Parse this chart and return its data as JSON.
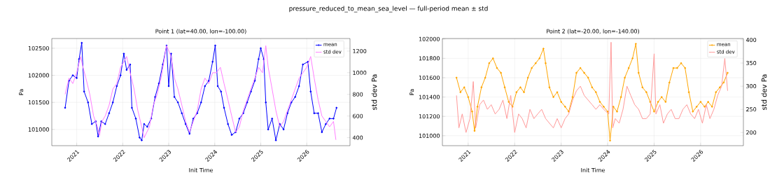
{
  "chart_data": [
    {
      "type": "other",
      "title": "pressure_reduced_to_mean_sea_level — full-period mean ± std"
    },
    {
      "type": "line",
      "title": "Point 1 (lat=40.00, lon=-100.00)",
      "xlabel": "Init Time",
      "ylabel": "Pa",
      "y2label": "std dev Pa",
      "xlim": [
        "2020-06-17",
        "2026-12-10"
      ],
      "xticks": [
        "2021",
        "2022",
        "2023",
        "2024",
        "2025",
        "2026"
      ],
      "ylim": [
        100700,
        102680
      ],
      "yticks": [
        101000,
        101500,
        102000,
        102500
      ],
      "y2lim": [
        326,
        1316
      ],
      "y2ticks": [
        400,
        600,
        800,
        1000,
        1200
      ],
      "grid": true,
      "legend": "top right",
      "series": [
        {
          "name": "mean",
          "color": "#0000ff",
          "marker": "circle",
          "axis": "y",
          "x": [
            "2020-10-01",
            "2020-11-01",
            "2020-12-01",
            "2021-01-01",
            "2021-01-20",
            "2021-02-10",
            "2021-03-01",
            "2021-04-01",
            "2021-05-01",
            "2021-06-01",
            "2021-06-20",
            "2021-07-15",
            "2021-08-15",
            "2021-09-15",
            "2021-10-15",
            "2021-11-15",
            "2021-12-15",
            "2022-01-10",
            "2022-02-01",
            "2022-03-01",
            "2022-03-15",
            "2022-04-15",
            "2022-05-15",
            "2022-06-01",
            "2022-06-20",
            "2022-07-15",
            "2022-08-15",
            "2022-09-15",
            "2022-10-15",
            "2022-11-15",
            "2022-12-15",
            "2023-01-01",
            "2023-01-20",
            "2023-02-15",
            "2023-03-15",
            "2023-04-15",
            "2023-05-15",
            "2023-06-15",
            "2023-07-15",
            "2023-08-15",
            "2023-09-15",
            "2023-10-15",
            "2023-11-15",
            "2023-12-15",
            "2024-01-05",
            "2024-01-25",
            "2024-02-20",
            "2024-03-15",
            "2024-04-15",
            "2024-05-15",
            "2024-06-15",
            "2024-07-15",
            "2024-08-15",
            "2024-09-15",
            "2024-10-15",
            "2024-11-15",
            "2024-12-15",
            "2025-01-01",
            "2025-01-25",
            "2025-02-10",
            "2025-03-01",
            "2025-04-01",
            "2025-05-01",
            "2025-06-01",
            "2025-07-01",
            "2025-08-01",
            "2025-09-01",
            "2025-10-01",
            "2025-11-01",
            "2025-12-01",
            "2026-01-10",
            "2026-02-01",
            "2026-03-01",
            "2026-04-01",
            "2026-05-01",
            "2026-06-01",
            "2026-07-01",
            "2026-08-01",
            "2026-08-25"
          ],
          "values": [
            101400,
            101900,
            102000,
            101950,
            102300,
            102600,
            101700,
            101500,
            101100,
            101150,
            100870,
            101150,
            101100,
            101300,
            101500,
            101800,
            102000,
            102400,
            102100,
            102200,
            101400,
            101200,
            100850,
            100800,
            101100,
            101050,
            101200,
            101600,
            101850,
            102200,
            102550,
            101800,
            102400,
            101600,
            101500,
            101300,
            101100,
            100920,
            101200,
            101300,
            101500,
            101800,
            101900,
            102250,
            102550,
            101800,
            101700,
            101400,
            101100,
            100900,
            100950,
            101200,
            101300,
            101500,
            101700,
            101900,
            102300,
            102500,
            102300,
            101500,
            101000,
            101200,
            100800,
            101100,
            101000,
            101300,
            101500,
            101600,
            101800,
            102200,
            102250,
            101700,
            101300,
            101300,
            100950,
            101100,
            101200,
            101200,
            101400
          ]
        },
        {
          "name": "std dev",
          "color": "#ff80ff",
          "marker": "none",
          "axis": "y2",
          "x": [
            "2020-10-01",
            "2020-11-01",
            "2020-12-01",
            "2021-01-01",
            "2021-02-01",
            "2021-02-20",
            "2021-03-15",
            "2021-04-15",
            "2021-05-15",
            "2021-06-15",
            "2021-07-01",
            "2021-07-20",
            "2021-08-15",
            "2021-09-15",
            "2021-10-15",
            "2021-11-15",
            "2021-12-15",
            "2022-01-10",
            "2022-02-01",
            "2022-03-01",
            "2022-04-01",
            "2022-05-01",
            "2022-06-01",
            "2022-06-20",
            "2022-08-01",
            "2022-09-01",
            "2022-10-01",
            "2022-11-01",
            "2022-12-15",
            "2023-01-20",
            "2023-02-15",
            "2023-03-15",
            "2023-04-15",
            "2023-05-15",
            "2023-06-15",
            "2023-07-15",
            "2023-08-15",
            "2023-09-15",
            "2023-10-15",
            "2023-11-15",
            "2023-12-15",
            "2024-01-15",
            "2024-02-15",
            "2024-03-15",
            "2024-04-15",
            "2024-05-15",
            "2024-06-15",
            "2024-07-15",
            "2024-08-15",
            "2024-09-15",
            "2024-10-15",
            "2024-11-15",
            "2024-12-15",
            "2025-01-15",
            "2025-02-10",
            "2025-03-01",
            "2025-04-01",
            "2025-05-01",
            "2025-06-01",
            "2025-07-01",
            "2025-08-01",
            "2025-09-01",
            "2025-10-01",
            "2025-11-01",
            "2025-12-01",
            "2026-01-01",
            "2026-02-01",
            "2026-03-01",
            "2026-04-01",
            "2026-05-01",
            "2026-06-01",
            "2026-07-01",
            "2026-08-01",
            "2026-08-20"
          ],
          "values": [
            800,
            950,
            900,
            1000,
            1150,
            1050,
            950,
            800,
            600,
            500,
            420,
            550,
            600,
            700,
            850,
            900,
            1050,
            1100,
            1150,
            1000,
            850,
            650,
            500,
            400,
            500,
            700,
            800,
            950,
            1250,
            1150,
            950,
            850,
            700,
            550,
            450,
            550,
            650,
            850,
            950,
            900,
            1000,
            1000,
            1050,
            900,
            750,
            600,
            450,
            500,
            650,
            750,
            850,
            950,
            1050,
            1000,
            1250,
            1050,
            850,
            650,
            500,
            550,
            650,
            750,
            850,
            950,
            1000,
            1050,
            1150,
            950,
            750,
            600,
            550,
            500,
            550,
            380
          ]
        }
      ]
    },
    {
      "type": "line",
      "title": "Point 2 (lat=-20.00, lon=-140.00)",
      "xlabel": "Init Time",
      "ylabel": "Pa",
      "y2label": "std dev Pa",
      "xlim": [
        "2020-06-12",
        "2026-12-03"
      ],
      "xticks": [
        "2021",
        "2022",
        "2023",
        "2024",
        "2025",
        "2026"
      ],
      "ylim": [
        100897,
        102005
      ],
      "yticks": [
        101000,
        101200,
        101400,
        101600,
        101800,
        102000
      ],
      "y2lim": [
        171.5,
        403
      ],
      "y2ticks": [
        200,
        250,
        300,
        350,
        400
      ],
      "grid": true,
      "legend": "top right",
      "series": [
        {
          "name": "mean",
          "color": "#ffa500",
          "marker": "circle",
          "axis": "y",
          "x": [
            "2020-10-01",
            "2020-11-01",
            "2020-12-01",
            "2021-01-01",
            "2021-02-01",
            "2021-02-20",
            "2021-03-15",
            "2021-04-15",
            "2021-05-15",
            "2021-06-15",
            "2021-07-15",
            "2021-08-15",
            "2021-09-15",
            "2021-10-15",
            "2021-11-15",
            "2021-12-15",
            "2022-01-15",
            "2022-02-15",
            "2022-03-15",
            "2022-04-15",
            "2022-05-15",
            "2022-06-15",
            "2022-07-15",
            "2022-08-15",
            "2022-09-01",
            "2022-10-01",
            "2022-11-01",
            "2022-12-01",
            "2023-01-01",
            "2023-02-01",
            "2023-03-01",
            "2023-04-01",
            "2023-05-01",
            "2023-06-01",
            "2023-07-01",
            "2023-08-01",
            "2023-09-01",
            "2023-10-01",
            "2023-11-01",
            "2023-12-01",
            "2024-01-01",
            "2024-01-20",
            "2024-02-15",
            "2024-03-15",
            "2024-04-15",
            "2024-05-15",
            "2024-06-15",
            "2024-07-15",
            "2024-08-10",
            "2024-09-01",
            "2024-10-01",
            "2024-11-01",
            "2024-12-01",
            "2025-01-01",
            "2025-02-01",
            "2025-03-01",
            "2025-04-01",
            "2025-05-01",
            "2025-06-01",
            "2025-07-01",
            "2025-08-01",
            "2025-09-01",
            "2025-10-01",
            "2025-11-01",
            "2025-12-01",
            "2026-01-01",
            "2026-02-01",
            "2026-03-01",
            "2026-04-01",
            "2026-05-01",
            "2026-06-01",
            "2026-07-01",
            "2026-08-01"
          ],
          "values": [
            101600,
            101450,
            101500,
            101400,
            101250,
            101050,
            101300,
            101500,
            101600,
            101750,
            101800,
            101700,
            101650,
            101500,
            101350,
            101300,
            101450,
            101500,
            101450,
            101600,
            101700,
            101750,
            101800,
            101900,
            101750,
            101500,
            101400,
            101450,
            101350,
            101300,
            101250,
            101400,
            101650,
            101700,
            101650,
            101600,
            101500,
            101450,
            101350,
            101300,
            101250,
            100950,
            101300,
            101250,
            101400,
            101600,
            101700,
            101800,
            101950,
            101650,
            101500,
            101450,
            101350,
            101250,
            101350,
            101400,
            101350,
            101550,
            101700,
            101700,
            101750,
            101700,
            101450,
            101250,
            101300,
            101350,
            101300,
            101350,
            101300,
            101450,
            101500,
            101550,
            101650
          ]
        },
        {
          "name": "std dev",
          "color": "#ff9999",
          "marker": "none",
          "axis": "y2",
          "x": [
            "2020-10-01",
            "2020-10-20",
            "2020-11-15",
            "2020-12-15",
            "2021-01-15",
            "2021-02-10",
            "2021-03-01",
            "2021-04-01",
            "2021-05-01",
            "2021-06-01",
            "2021-07-01",
            "2021-08-01",
            "2021-09-01",
            "2021-10-01",
            "2021-11-01",
            "2021-12-01",
            "2022-01-01",
            "2022-02-01",
            "2022-03-01",
            "2022-04-01",
            "2022-05-01",
            "2022-06-01",
            "2022-07-01",
            "2022-08-01",
            "2022-09-01",
            "2022-10-01",
            "2022-11-01",
            "2022-12-01",
            "2023-01-01",
            "2023-02-01",
            "2023-03-01",
            "2023-04-01",
            "2023-05-01",
            "2023-06-01",
            "2023-07-01",
            "2023-08-01",
            "2023-09-01",
            "2023-10-01",
            "2023-11-01",
            "2023-12-01",
            "2024-01-10",
            "2024-01-28",
            "2024-02-10",
            "2024-03-01",
            "2024-04-01",
            "2024-05-01",
            "2024-06-01",
            "2024-07-01",
            "2024-08-01",
            "2024-09-01",
            "2024-10-01",
            "2024-11-01",
            "2024-12-01",
            "2025-01-01",
            "2025-01-15",
            "2025-02-15",
            "2025-03-15",
            "2025-04-15",
            "2025-05-15",
            "2025-06-15",
            "2025-07-15",
            "2025-08-15",
            "2025-09-15",
            "2025-10-15",
            "2025-11-15",
            "2025-12-15",
            "2026-01-15",
            "2026-02-15",
            "2026-03-15",
            "2026-04-15",
            "2026-05-15",
            "2026-06-15",
            "2026-07-10",
            "2026-08-01"
          ],
          "values": [
            280,
            210,
            240,
            200,
            230,
            310,
            210,
            260,
            270,
            250,
            260,
            240,
            250,
            270,
            230,
            280,
            200,
            240,
            230,
            210,
            250,
            230,
            240,
            250,
            230,
            220,
            210,
            230,
            210,
            230,
            240,
            270,
            290,
            300,
            280,
            270,
            260,
            250,
            260,
            250,
            240,
            395,
            210,
            230,
            220,
            250,
            300,
            280,
            260,
            250,
            230,
            230,
            240,
            370,
            240,
            260,
            220,
            240,
            250,
            230,
            230,
            250,
            260,
            240,
            230,
            250,
            220,
            260,
            230,
            250,
            280,
            300,
            360,
            290
          ]
        }
      ]
    }
  ]
}
